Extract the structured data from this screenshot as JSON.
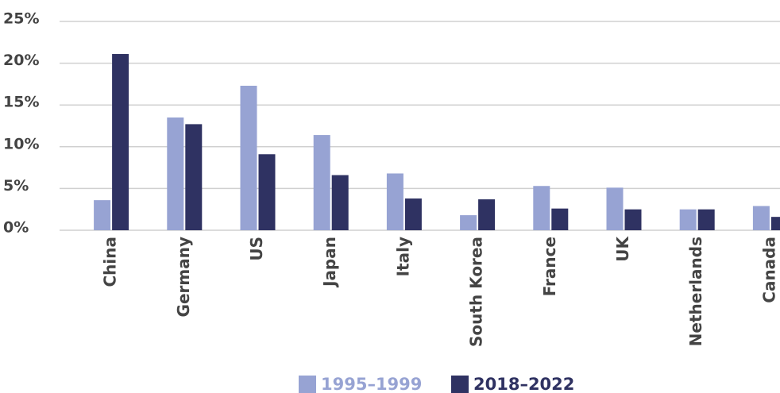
{
  "chart_data": {
    "type": "bar",
    "categories": [
      "China",
      "Germany",
      "US",
      "Japan",
      "Italy",
      "South Korea",
      "France",
      "UK",
      "Netherlands",
      "Canada"
    ],
    "series": [
      {
        "name": "1995–1999",
        "color": "#97a3d3",
        "values": [
          3.6,
          13.5,
          17.3,
          11.4,
          6.8,
          1.8,
          5.3,
          5.1,
          2.5,
          2.9
        ]
      },
      {
        "name": "2018–2022",
        "color": "#2f3262",
        "values": [
          21.1,
          12.7,
          9.1,
          6.6,
          3.8,
          3.7,
          2.6,
          2.5,
          2.5,
          1.6
        ]
      }
    ],
    "ylim": [
      0,
      25
    ],
    "yticks": [
      {
        "value": 0,
        "label": "0%"
      },
      {
        "value": 5,
        "label": "5%"
      },
      {
        "value": 10,
        "label": "10%"
      },
      {
        "value": 15,
        "label": "15%"
      },
      {
        "value": 20,
        "label": "20%"
      },
      {
        "value": 25,
        "label": "25%"
      }
    ],
    "grid": true,
    "legend": "bottom"
  }
}
